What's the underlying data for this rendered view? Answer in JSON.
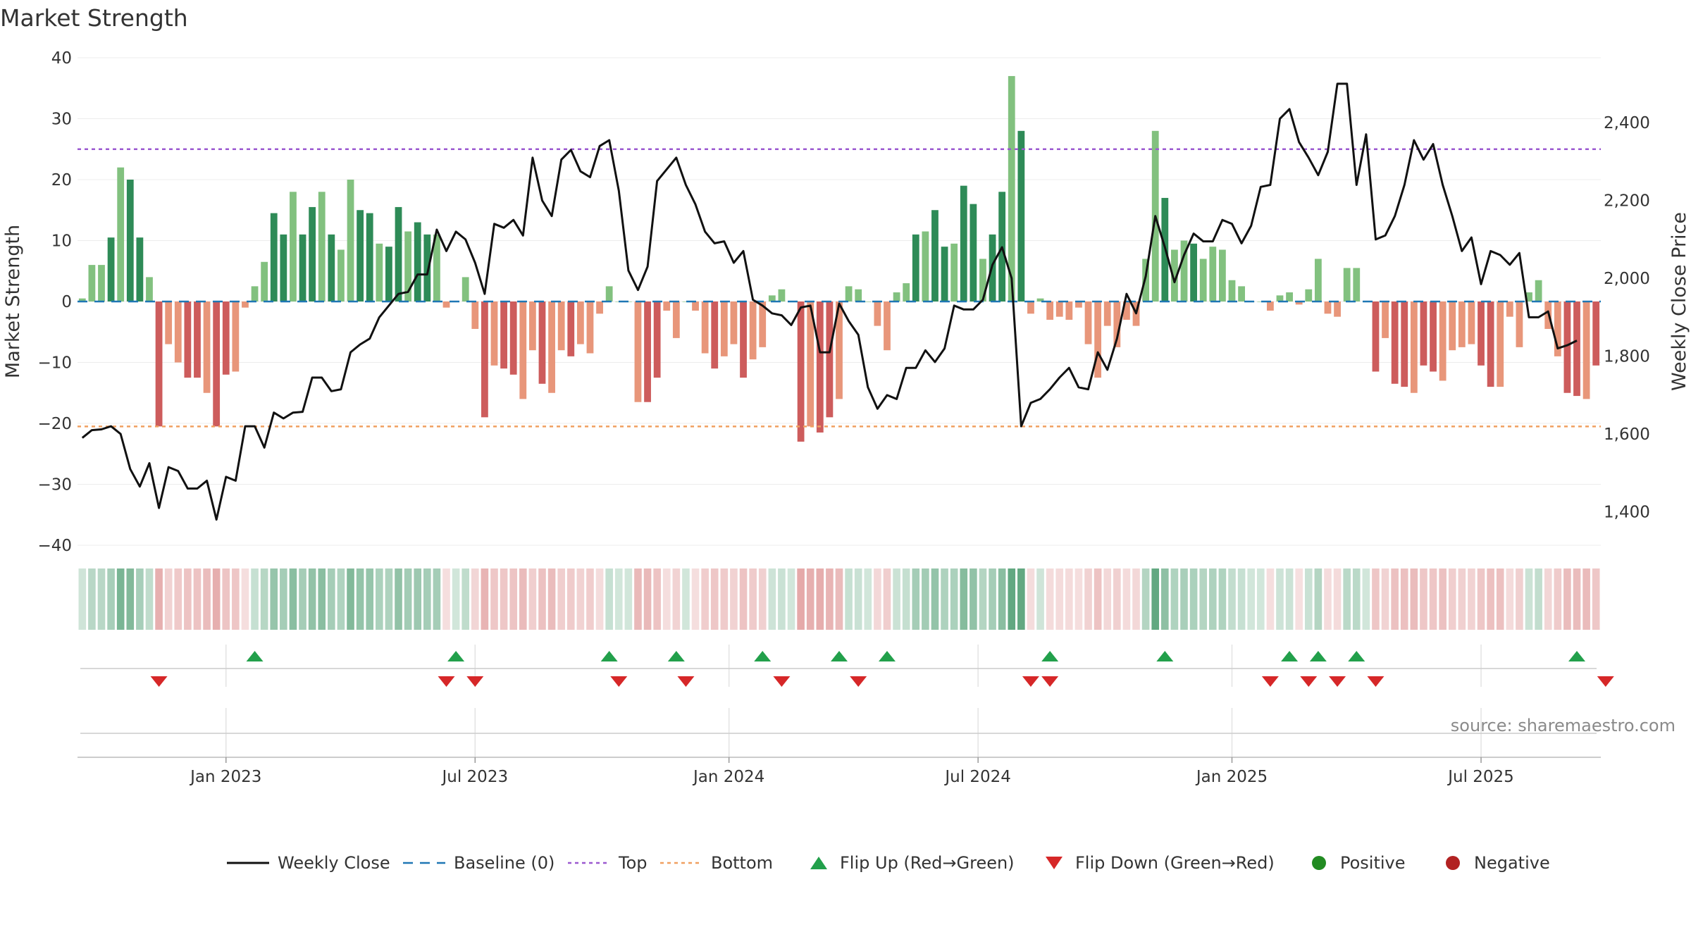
{
  "chart_data": {
    "type": "bar",
    "title": "Market Strength",
    "ylabel_left": "Market Strength",
    "ylabel_right": "Weekly Close Price",
    "ylim_left": [
      -43,
      40
    ],
    "ylim_right": [
      1290,
      2560
    ],
    "yticks_left": [
      "40",
      "30",
      "20",
      "10",
      "0",
      "−10",
      "−20",
      "−30",
      "−40"
    ],
    "yticks_left_values": [
      40,
      30,
      20,
      10,
      0,
      -10,
      -20,
      -30,
      -40
    ],
    "yticks_right": [
      "2,400",
      "2,200",
      "2,000",
      "1,800",
      "1,600",
      "1,400"
    ],
    "yticks_right_values": [
      2400,
      2200,
      2000,
      1800,
      1600,
      1400
    ],
    "x_start": "2022-09-16",
    "x_tick_labels": [
      "Jan 2023",
      "Jul 2023",
      "Jan 2024",
      "Jul 2024",
      "Jan 2025",
      "Jul 2025"
    ],
    "x_tick_weeks": [
      15.5,
      41.5,
      68,
      94,
      120.5,
      146.5
    ],
    "top_level": 25,
    "bottom_level": -20.5,
    "strength": [
      0.5,
      6,
      6,
      10.5,
      22,
      20,
      10.5,
      4,
      -20.5,
      -7,
      -10,
      -12.5,
      -12.5,
      -15,
      -20.5,
      -12,
      -11.5,
      -1,
      2.5,
      6.5,
      14.5,
      11,
      18,
      11,
      15.5,
      18,
      11,
      8.5,
      20,
      15,
      14.5,
      9.5,
      9,
      15.5,
      11.5,
      13,
      11,
      11,
      -1,
      0,
      4,
      -4.5,
      -19,
      -10.5,
      -11,
      -12,
      -16,
      -8,
      -13.5,
      -15,
      -8,
      -9,
      -7,
      -8.5,
      -2,
      2.5,
      0,
      0,
      -16.5,
      -16.5,
      -12.5,
      -1.5,
      -6,
      0,
      -1.5,
      -8.5,
      -11,
      -9,
      -7,
      -12.5,
      -9.5,
      -7.5,
      1,
      2,
      0,
      -23,
      -20.5,
      -21.5,
      -19,
      -16,
      2.5,
      2,
      0,
      -4,
      -8,
      1.5,
      3,
      11,
      11.5,
      15,
      9,
      9.5,
      19,
      16,
      7,
      11,
      18,
      37,
      28,
      -2,
      0.5,
      -3,
      -2.5,
      -3,
      -1,
      -7,
      -12.5,
      -4,
      -7.5,
      -3,
      -4,
      7,
      28,
      17,
      8.5,
      10,
      9.5,
      7,
      9,
      8.5,
      3.5,
      2.5,
      0,
      0,
      -1.5,
      1,
      1.5,
      -0.5,
      2,
      7,
      -2,
      -2.5,
      5.5,
      5.5,
      0,
      -11.5,
      -6,
      -13.5,
      -14,
      -15,
      -10.5,
      -11.5,
      -13,
      -8,
      -7.5,
      -7,
      -10.5,
      -14,
      -14,
      -2.5,
      -7.5,
      1.5,
      3.5,
      -4.5,
      -9,
      -15,
      -15.5,
      -16,
      -10.5
    ],
    "weekly_close": [
      1590,
      1610,
      1612,
      1620,
      1600,
      1510,
      1465,
      1525,
      1410,
      1515,
      1505,
      1460,
      1460,
      1480,
      1380,
      1490,
      1480,
      1620,
      1620,
      1565,
      1655,
      1640,
      1655,
      1657,
      1745,
      1745,
      1710,
      1715,
      1810,
      1830,
      1845,
      1900,
      1930,
      1960,
      1965,
      2010,
      2010,
      2125,
      2070,
      2120,
      2100,
      2040,
      1960,
      2140,
      2130,
      2150,
      2110,
      2310,
      2200,
      2160,
      2305,
      2330,
      2275,
      2260,
      2340,
      2355,
      2225,
      2020,
      1970,
      2030,
      2250,
      2280,
      2310,
      2240,
      2190,
      2120,
      2090,
      2095,
      2040,
      2070,
      1945,
      1930,
      1910,
      1905,
      1880,
      1925,
      1930,
      1810,
      1810,
      1935,
      1890,
      1855,
      1720,
      1665,
      1700,
      1690,
      1770,
      1770,
      1815,
      1785,
      1820,
      1930,
      1920,
      1920,
      1945,
      2035,
      2080,
      2000,
      1620,
      1680,
      1690,
      1715,
      1745,
      1770,
      1720,
      1715,
      1810,
      1765,
      1845,
      1960,
      1910,
      2005,
      2160,
      2080,
      1990,
      2060,
      2115,
      2095,
      2095,
      2150,
      2140,
      2090,
      2135,
      2235,
      2240,
      2410,
      2435,
      2350,
      2310,
      2265,
      2325,
      2500,
      2500,
      2240,
      2370,
      2100,
      2110,
      2160,
      2240,
      2355,
      2305,
      2345,
      2240,
      2160,
      2070,
      2105,
      1985,
      2070,
      2060,
      2035,
      2065,
      1900,
      1900,
      1915,
      1820,
      1828,
      1840
    ],
    "flip_up_weeks": [
      18,
      39,
      55,
      62,
      71,
      79,
      84,
      101,
      113,
      126,
      129,
      133,
      156
    ],
    "flip_down_weeks": [
      8,
      38,
      41,
      56,
      63,
      73,
      81,
      99,
      101,
      124,
      128,
      131,
      135,
      159
    ],
    "colors": {
      "pos_strong": "#2e8b57",
      "pos_light": "#82c17f",
      "neg_strong": "#cd5c5c",
      "neg_light": "#e8967a",
      "close_line": "#111111",
      "baseline": "#1f77b4",
      "top": "#9b59d0",
      "bottom": "#f0a060",
      "flip_up": "#22a04b",
      "flip_down": "#d62728",
      "positive_dot": "#228b22",
      "negative_dot": "#b22222"
    },
    "legend": [
      {
        "label": "Weekly Close",
        "icon": "solid-line"
      },
      {
        "label": "Baseline (0)",
        "icon": "dashed-line"
      },
      {
        "label": "Top",
        "icon": "dotted-line-purple"
      },
      {
        "label": "Bottom",
        "icon": "dotted-line-orange"
      },
      {
        "label": "Flip Up (Red→Green)",
        "icon": "triangle-up"
      },
      {
        "label": "Flip Down (Green→Red)",
        "icon": "triangle-down"
      },
      {
        "label": "Positive",
        "icon": "circle-green"
      },
      {
        "label": "Negative",
        "icon": "circle-red"
      }
    ],
    "source": "source: sharemaestro.com"
  }
}
